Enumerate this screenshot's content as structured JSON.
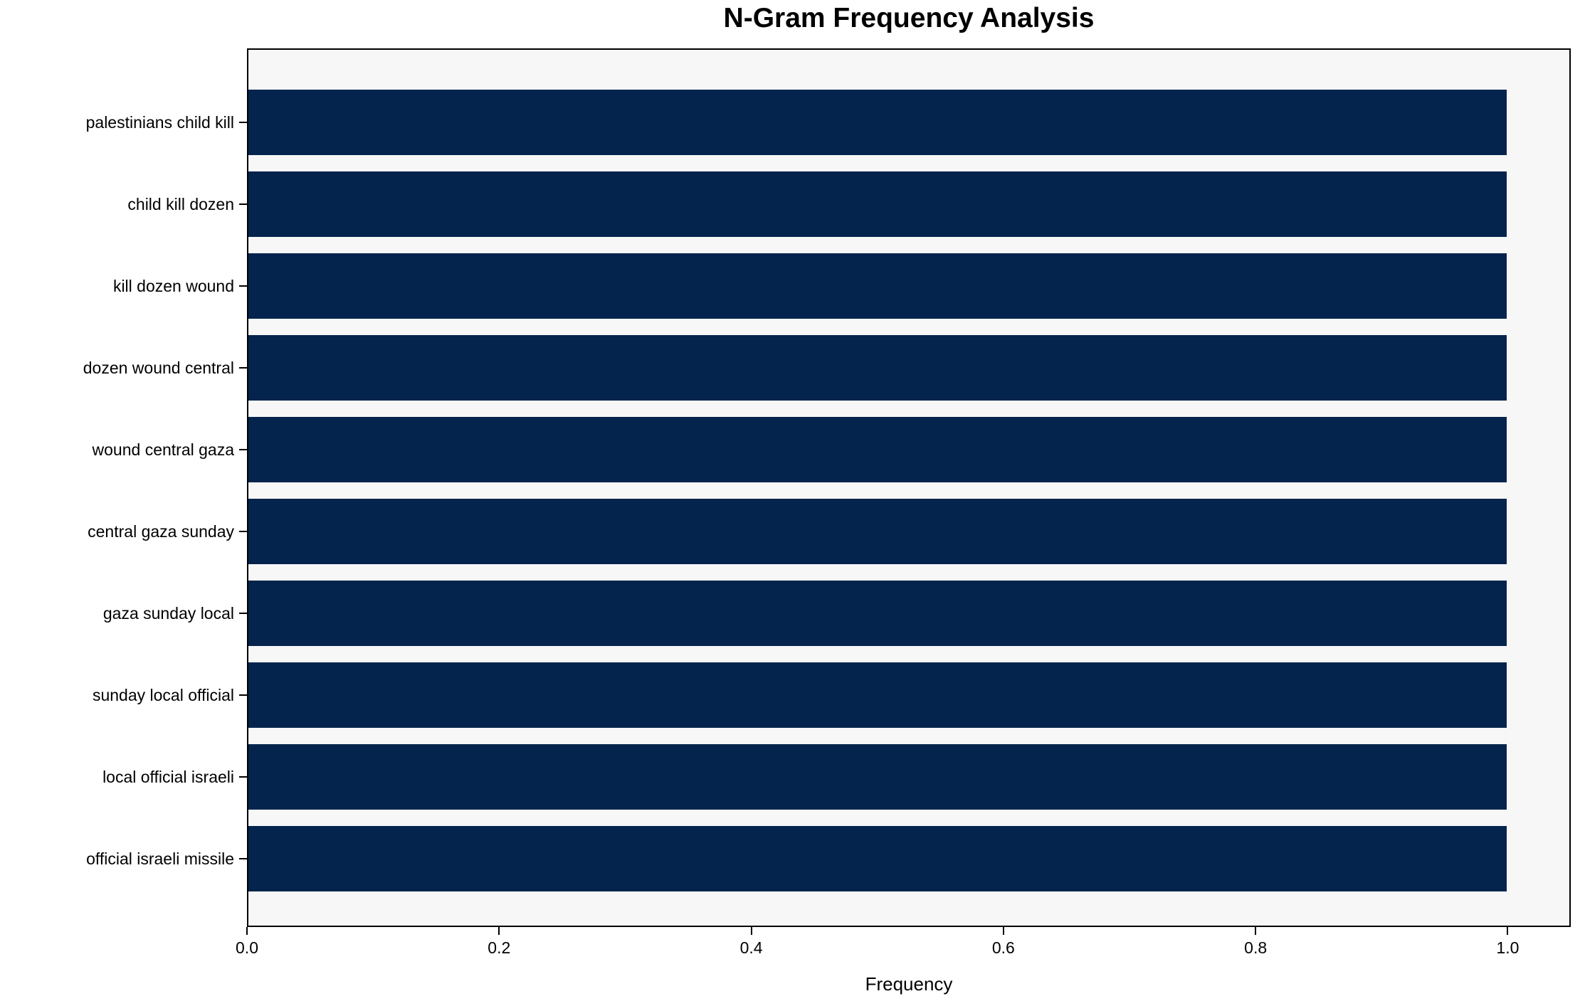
{
  "chart_data": {
    "type": "bar",
    "orientation": "horizontal",
    "title": "N-Gram Frequency Analysis",
    "xlabel": "Frequency",
    "ylabel": "",
    "categories": [
      "palestinians child kill",
      "child kill dozen",
      "kill dozen wound",
      "dozen wound central",
      "wound central gaza",
      "central gaza sunday",
      "gaza sunday local",
      "sunday local official",
      "local official israeli",
      "official israeli missile"
    ],
    "values": [
      1.0,
      1.0,
      1.0,
      1.0,
      1.0,
      1.0,
      1.0,
      1.0,
      1.0,
      1.0
    ],
    "x_ticks": [
      "0.0",
      "0.2",
      "0.4",
      "0.6",
      "0.8",
      "1.0"
    ],
    "xlim": [
      0,
      1.05
    ],
    "grid": false,
    "legend": "none",
    "colors": {
      "bar": "#04244d",
      "plot_background": "#f7f7f7",
      "figure_background": "#ffffff",
      "spine": "#000000",
      "text": "#000000"
    }
  }
}
